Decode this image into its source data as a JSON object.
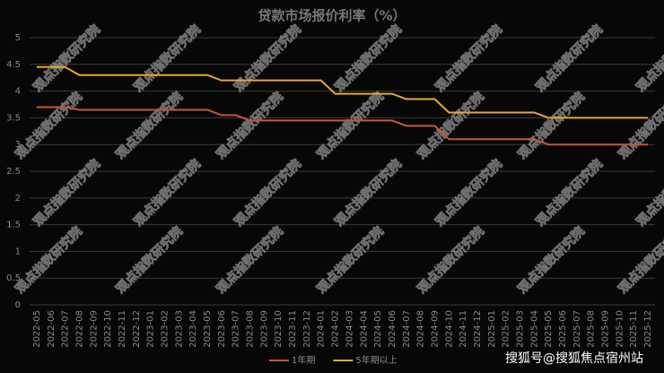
{
  "chart_data": {
    "type": "line",
    "title": "贷款市场报价利率（%）",
    "categories": [
      "2022-05",
      "2022-06",
      "2022-07",
      "2022-08",
      "2022-09",
      "2022-10",
      "2022-11",
      "2022-12",
      "2023-01",
      "2023-02",
      "2023-03",
      "2023-04",
      "2023-05",
      "2023-06",
      "2023-07",
      "2023-08",
      "2023-09",
      "2023-10",
      "2023-11",
      "2023-12",
      "2024-01",
      "2024-02",
      "2024-03",
      "2024-04",
      "2024-05",
      "2024-06",
      "2024-07",
      "2024-08",
      "2024-09",
      "2024-10",
      "2024-11",
      "2024-12",
      "2025-01",
      "2025-02",
      "2025-03",
      "2025-04",
      "2025-05",
      "2025-06",
      "2025-07",
      "2025-08",
      "2025-09",
      "2025-10",
      "2025-11",
      "2025-12"
    ],
    "series": [
      {
        "name": "1年期",
        "color": "#c8553a",
        "values": [
          3.7,
          3.7,
          3.7,
          3.65,
          3.65,
          3.65,
          3.65,
          3.65,
          3.65,
          3.65,
          3.65,
          3.65,
          3.65,
          3.55,
          3.55,
          3.45,
          3.45,
          3.45,
          3.45,
          3.45,
          3.45,
          3.45,
          3.45,
          3.45,
          3.45,
          3.45,
          3.35,
          3.35,
          3.35,
          3.1,
          3.1,
          3.1,
          3.1,
          3.1,
          3.1,
          3.1,
          3.0,
          3.0,
          3.0,
          3.0,
          3.0,
          3.0,
          3.0,
          3.0
        ]
      },
      {
        "name": "5年期以上",
        "color": "#e8a634",
        "values": [
          4.45,
          4.45,
          4.45,
          4.3,
          4.3,
          4.3,
          4.3,
          4.3,
          4.3,
          4.3,
          4.3,
          4.3,
          4.3,
          4.2,
          4.2,
          4.2,
          4.2,
          4.2,
          4.2,
          4.2,
          4.2,
          3.95,
          3.95,
          3.95,
          3.95,
          3.95,
          3.85,
          3.85,
          3.85,
          3.6,
          3.6,
          3.6,
          3.6,
          3.6,
          3.6,
          3.6,
          3.5,
          3.5,
          3.5,
          3.5,
          3.5,
          3.5,
          3.5,
          3.5
        ]
      }
    ],
    "ylim": [
      0,
      5
    ],
    "yticks": [
      0,
      0.5,
      1,
      1.5,
      2,
      2.5,
      3,
      3.5,
      4,
      4.5,
      5
    ],
    "grid": true,
    "legend": "bottom",
    "watermark": "观点指数研究院",
    "credit": "搜狐号@搜狐焦点宿州站"
  }
}
